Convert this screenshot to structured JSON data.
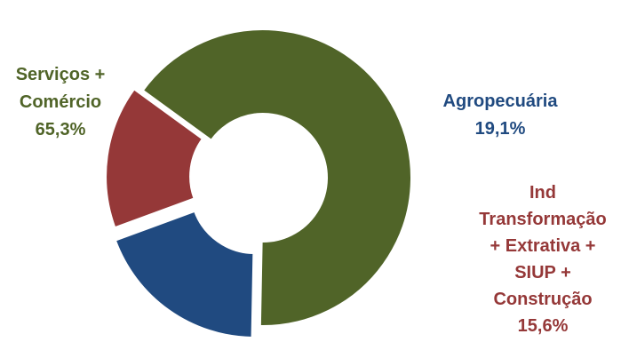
{
  "chart_data": {
    "type": "pie",
    "title": "",
    "slices": [
      {
        "label_lines": [
          "Serviços +",
          "Comércio"
        ],
        "value_label": "65,3%",
        "value": 65.3,
        "color": "#506428"
      },
      {
        "label_lines": [
          "Agropecuária"
        ],
        "value_label": "19,1%",
        "value": 19.1,
        "color": "#204a80"
      },
      {
        "label_lines": [
          "Ind",
          "Transformação",
          "+ Extrativa +",
          "SIUP +",
          "Construção"
        ],
        "value_label": "15,6%",
        "value": 15.6,
        "color": "#953838"
      }
    ]
  }
}
